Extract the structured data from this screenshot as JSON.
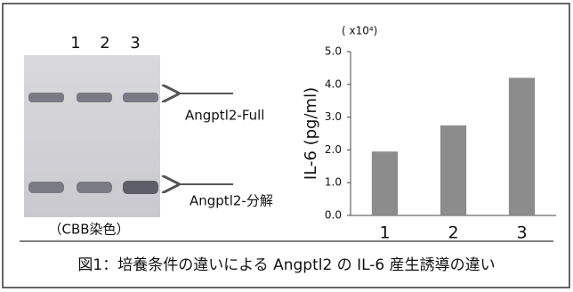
{
  "gel": {
    "lanes": [
      "1",
      "2",
      "3"
    ],
    "bands": [
      "Angptl2-Full",
      "Angptl2-分解"
    ],
    "stain": "（CBB染色）"
  },
  "chart_data": {
    "type": "bar",
    "ylabel": "IL-6 (pg/ml)",
    "scale_note": "( x10⁴)",
    "categories": [
      "1",
      "2",
      "3"
    ],
    "values": [
      1.95,
      2.75,
      4.2
    ],
    "color": "#8c8c8c",
    "ylim": [
      0,
      5
    ],
    "yticks": [
      {
        "value": 0,
        "label": "0.0"
      },
      {
        "value": 1,
        "label": "1.0"
      },
      {
        "value": 2,
        "label": "2.0"
      },
      {
        "value": 3,
        "label": "3.0"
      },
      {
        "value": 4,
        "label": "4.0"
      },
      {
        "value": 5,
        "label": "5.0"
      }
    ]
  },
  "caption": "図1：培養条件の違いによる Angptl2 の IL-6 産生誘導の違い"
}
